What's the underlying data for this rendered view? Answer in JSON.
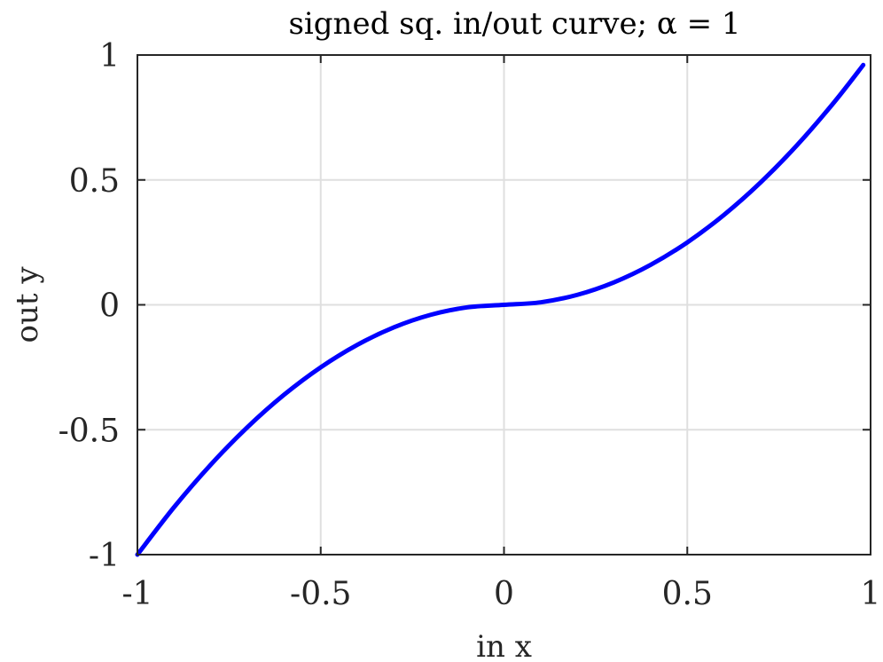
{
  "chart_data": {
    "type": "line",
    "title": "signed sq. in/out curve; α = 1",
    "xlabel": "in x",
    "ylabel": "out y",
    "xlim": [
      -1,
      1
    ],
    "ylim": [
      -1,
      1
    ],
    "xticks": [
      -1,
      -0.5,
      0,
      0.5,
      1
    ],
    "yticks": [
      -1,
      -0.5,
      0,
      0.5,
      1
    ],
    "xtick_labels": [
      "-1",
      "-0.5",
      "0",
      "0.5",
      "1"
    ],
    "ytick_labels": [
      "-1",
      "-0.5",
      "0",
      "0.5",
      "1"
    ],
    "grid": true,
    "legend": null,
    "series": [
      {
        "color": "#0000ff",
        "x": [
          -1.0,
          -0.9,
          -0.8,
          -0.7,
          -0.6,
          -0.5,
          -0.4,
          -0.3,
          -0.2,
          -0.1,
          0.0,
          0.1,
          0.2,
          0.3,
          0.4,
          0.5,
          0.6,
          0.7,
          0.8,
          0.9,
          0.98
        ],
        "y": [
          -1.0,
          -0.81,
          -0.64,
          -0.49,
          -0.36,
          -0.25,
          -0.16,
          -0.09,
          -0.04,
          -0.01,
          0.0,
          0.01,
          0.04,
          0.09,
          0.16,
          0.25,
          0.36,
          0.49,
          0.64,
          0.81,
          0.96
        ]
      }
    ]
  }
}
